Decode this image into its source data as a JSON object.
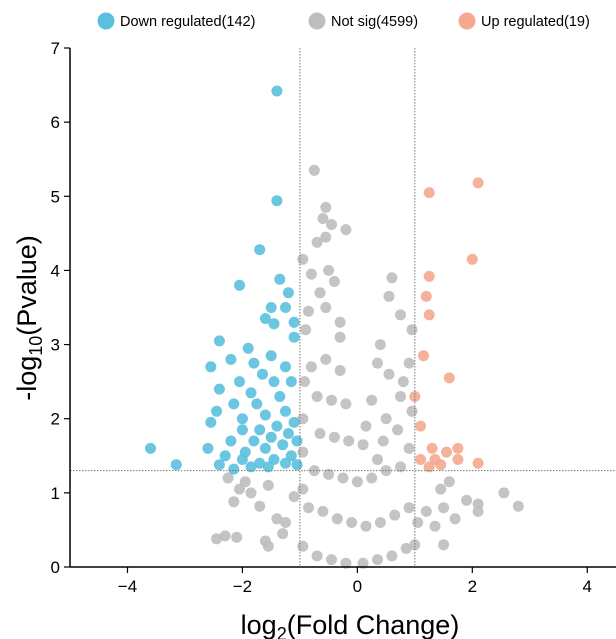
{
  "chart_data": {
    "type": "scatter",
    "title": "",
    "xlabel": "log",
    "xlabel_sub": "2",
    "xlabel_rest": "(Fold Change)",
    "ylabel": "-log",
    "ylabel_sub": "10",
    "ylabel_rest": "(Pvalue)",
    "xlim": [
      -5,
      4.5
    ],
    "ylim": [
      0,
      7
    ],
    "xticks": [
      -4,
      -2,
      0,
      2,
      4
    ],
    "xtick_labels": [
      "−4",
      "−2",
      "0",
      "2",
      "4"
    ],
    "yticks": [
      0,
      1,
      2,
      3,
      4,
      5,
      6,
      7
    ],
    "ytick_labels": [
      "0",
      "1",
      "2",
      "3",
      "4",
      "5",
      "6",
      "7"
    ],
    "fold_change_thresholds": [
      -1,
      1
    ],
    "pvalue_threshold": 1.3,
    "legend_position": "top",
    "grid": false,
    "series": [
      {
        "name": "Down regulated(142)",
        "color": "#5bc0de",
        "points": [
          [
            -1.4,
            6.42
          ],
          [
            -1.4,
            4.94
          ],
          [
            -1.7,
            4.28
          ],
          [
            -2.05,
            3.8
          ],
          [
            -1.35,
            3.88
          ],
          [
            -1.5,
            3.5
          ],
          [
            -1.2,
            3.7
          ],
          [
            -1.6,
            3.35
          ],
          [
            -1.25,
            3.5
          ],
          [
            -1.45,
            3.28
          ],
          [
            -1.1,
            3.3
          ],
          [
            -2.4,
            3.05
          ],
          [
            -1.9,
            2.95
          ],
          [
            -2.2,
            2.8
          ],
          [
            -1.8,
            2.75
          ],
          [
            -1.1,
            3.1
          ],
          [
            -2.55,
            2.7
          ],
          [
            -1.5,
            2.85
          ],
          [
            -1.25,
            2.7
          ],
          [
            -2.05,
            2.5
          ],
          [
            -1.65,
            2.6
          ],
          [
            -2.4,
            2.4
          ],
          [
            -1.85,
            2.35
          ],
          [
            -1.45,
            2.5
          ],
          [
            -1.15,
            2.5
          ],
          [
            -2.15,
            2.2
          ],
          [
            -1.75,
            2.2
          ],
          [
            -1.35,
            2.3
          ],
          [
            -2.45,
            2.1
          ],
          [
            -2.0,
            2.0
          ],
          [
            -1.6,
            2.05
          ],
          [
            -1.25,
            2.1
          ],
          [
            -2.55,
            1.95
          ],
          [
            -2.0,
            1.85
          ],
          [
            -1.7,
            1.85
          ],
          [
            -1.4,
            1.9
          ],
          [
            -1.1,
            1.95
          ],
          [
            -2.2,
            1.7
          ],
          [
            -1.8,
            1.7
          ],
          [
            -1.5,
            1.75
          ],
          [
            -1.2,
            1.8
          ],
          [
            -2.6,
            1.6
          ],
          [
            -2.3,
            1.5
          ],
          [
            -1.95,
            1.55
          ],
          [
            -1.6,
            1.6
          ],
          [
            -1.3,
            1.65
          ],
          [
            -1.05,
            1.7
          ],
          [
            -3.6,
            1.6
          ],
          [
            -3.15,
            1.38
          ],
          [
            -2.0,
            1.45
          ],
          [
            -1.7,
            1.4
          ],
          [
            -1.45,
            1.45
          ],
          [
            -1.15,
            1.5
          ],
          [
            -2.4,
            1.38
          ],
          [
            -1.85,
            1.35
          ],
          [
            -1.55,
            1.35
          ],
          [
            -1.25,
            1.4
          ],
          [
            -1.05,
            1.38
          ],
          [
            -2.15,
            1.32
          ]
        ]
      },
      {
        "name": "Not sig(4599)",
        "color": "#bebebe",
        "points": [
          [
            -0.75,
            5.35
          ],
          [
            -0.55,
            4.85
          ],
          [
            -0.6,
            4.7
          ],
          [
            -0.45,
            4.62
          ],
          [
            -0.55,
            4.45
          ],
          [
            -0.2,
            4.55
          ],
          [
            -0.7,
            4.38
          ],
          [
            -0.95,
            4.15
          ],
          [
            -0.5,
            4.0
          ],
          [
            -0.8,
            3.95
          ],
          [
            -0.4,
            3.85
          ],
          [
            0.6,
            3.9
          ],
          [
            -0.65,
            3.7
          ],
          [
            -0.55,
            3.5
          ],
          [
            -0.85,
            3.45
          ],
          [
            -0.3,
            3.3
          ],
          [
            0.55,
            3.65
          ],
          [
            0.75,
            3.4
          ],
          [
            0.95,
            3.2
          ],
          [
            0.4,
            3.0
          ],
          [
            0.35,
            2.75
          ],
          [
            0.55,
            2.6
          ],
          [
            0.8,
            2.5
          ],
          [
            -0.9,
            3.2
          ],
          [
            -0.3,
            3.1
          ],
          [
            0.9,
            2.75
          ],
          [
            0.25,
            2.25
          ],
          [
            0.5,
            2.0
          ],
          [
            0.75,
            2.3
          ],
          [
            0.95,
            2.1
          ],
          [
            0.15,
            1.9
          ],
          [
            0.45,
            1.7
          ],
          [
            0.7,
            1.85
          ],
          [
            0.9,
            1.6
          ],
          [
            1.5,
            0.8
          ],
          [
            1.7,
            0.65
          ],
          [
            1.9,
            0.9
          ],
          [
            2.1,
            0.85
          ],
          [
            2.55,
            1.0
          ],
          [
            2.8,
            0.82
          ],
          [
            2.1,
            0.75
          ],
          [
            1.45,
            1.05
          ],
          [
            1.6,
            1.15
          ],
          [
            1.35,
            0.55
          ],
          [
            1.2,
            0.75
          ],
          [
            1.05,
            0.6
          ],
          [
            1.5,
            0.3
          ],
          [
            1.0,
            0.3
          ],
          [
            -2.45,
            0.38
          ],
          [
            -2.3,
            0.42
          ],
          [
            -2.1,
            0.4
          ],
          [
            -1.6,
            0.35
          ],
          [
            -1.55,
            0.28
          ],
          [
            -1.3,
            0.45
          ],
          [
            -1.4,
            0.65
          ],
          [
            -1.7,
            0.82
          ],
          [
            -2.05,
            1.05
          ],
          [
            -2.15,
            0.88
          ],
          [
            -1.85,
            1.0
          ],
          [
            -1.95,
            1.15
          ],
          [
            -2.25,
            1.2
          ],
          [
            -1.55,
            1.1
          ],
          [
            -1.1,
            0.95
          ],
          [
            -1.25,
            0.6
          ],
          [
            -0.95,
            0.28
          ],
          [
            -0.7,
            0.15
          ],
          [
            -0.45,
            0.1
          ],
          [
            -0.2,
            0.05
          ],
          [
            0.1,
            0.05
          ],
          [
            0.35,
            0.1
          ],
          [
            0.6,
            0.15
          ],
          [
            0.85,
            0.25
          ],
          [
            -0.85,
            0.8
          ],
          [
            -0.6,
            0.75
          ],
          [
            -0.35,
            0.65
          ],
          [
            -0.1,
            0.6
          ],
          [
            0.15,
            0.55
          ],
          [
            0.4,
            0.6
          ],
          [
            0.65,
            0.7
          ],
          [
            0.9,
            0.8
          ],
          [
            -0.75,
            1.3
          ],
          [
            -0.5,
            1.25
          ],
          [
            -0.25,
            1.2
          ],
          [
            0.0,
            1.15
          ],
          [
            0.25,
            1.2
          ],
          [
            0.5,
            1.3
          ],
          [
            0.75,
            1.35
          ],
          [
            -0.65,
            1.8
          ],
          [
            -0.4,
            1.75
          ],
          [
            -0.15,
            1.7
          ],
          [
            0.1,
            1.65
          ],
          [
            0.35,
            1.45
          ],
          [
            -0.7,
            2.3
          ],
          [
            -0.45,
            2.25
          ],
          [
            -0.2,
            2.2
          ],
          [
            -0.8,
            2.7
          ],
          [
            -0.55,
            2.8
          ],
          [
            -0.3,
            2.65
          ],
          [
            -0.95,
            1.05
          ],
          [
            -0.95,
            1.55
          ],
          [
            -0.95,
            2.0
          ],
          [
            -0.92,
            2.5
          ]
        ]
      },
      {
        "name": "Up regulated(19)",
        "color": "#f4a98e",
        "points": [
          [
            1.25,
            5.05
          ],
          [
            2.1,
            5.18
          ],
          [
            2.0,
            4.15
          ],
          [
            1.25,
            3.92
          ],
          [
            1.2,
            3.65
          ],
          [
            1.25,
            3.4
          ],
          [
            1.15,
            2.85
          ],
          [
            1.6,
            2.55
          ],
          [
            1.0,
            2.3
          ],
          [
            1.1,
            1.9
          ],
          [
            1.3,
            1.6
          ],
          [
            1.35,
            1.45
          ],
          [
            1.55,
            1.55
          ],
          [
            1.75,
            1.6
          ],
          [
            1.1,
            1.45
          ],
          [
            1.25,
            1.35
          ],
          [
            1.75,
            1.45
          ],
          [
            2.1,
            1.4
          ],
          [
            1.45,
            1.38
          ]
        ]
      }
    ]
  }
}
